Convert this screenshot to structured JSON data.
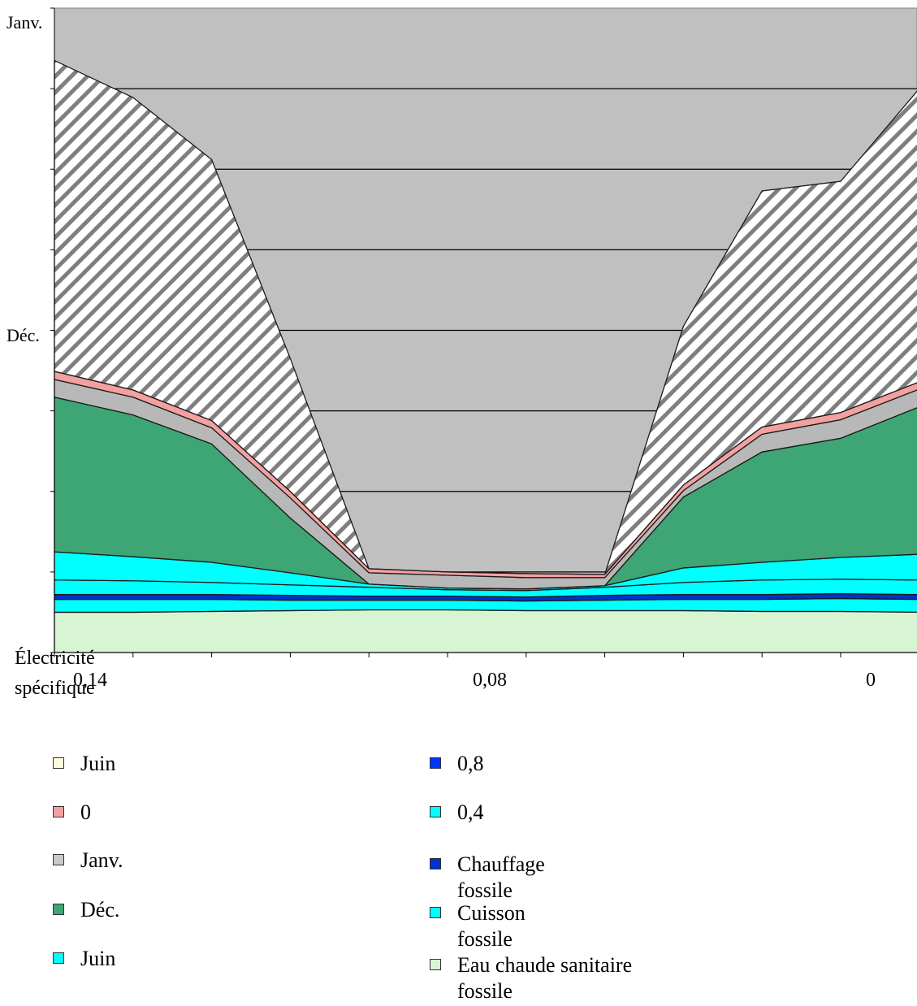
{
  "chart_data": {
    "type": "area",
    "stacked": true,
    "x_tick_labels": [
      "0,14",
      "0,08",
      "0"
    ],
    "y_tick_labels": [
      "Janv.",
      "Déc."
    ],
    "y_axis_title": "Électricité spécifique",
    "grid": "horizontal",
    "ylim": [
      0,
      8
    ],
    "x": [
      0,
      1,
      2,
      3,
      4,
      5,
      6,
      7,
      8,
      9,
      10,
      11
    ],
    "series": [
      {
        "name": "Eau chaude sanitaire fossile",
        "color": "#d8f5d3",
        "values": [
          0.5,
          0.5,
          0.51,
          0.52,
          0.53,
          0.53,
          0.52,
          0.52,
          0.52,
          0.51,
          0.51,
          0.5
        ]
      },
      {
        "name": "Cuisson fossile",
        "color": "#00ffff",
        "values": [
          0.16,
          0.16,
          0.15,
          0.13,
          0.12,
          0.12,
          0.12,
          0.13,
          0.14,
          0.15,
          0.16,
          0.16
        ]
      },
      {
        "name": "Chauffage fossile",
        "color": "#0033cc",
        "values": [
          0.06,
          0.06,
          0.06,
          0.06,
          0.05,
          0.05,
          0.05,
          0.06,
          0.06,
          0.06,
          0.06,
          0.06
        ]
      },
      {
        "name": "0,4",
        "color": "#00ffff",
        "values": [
          0.18,
          0.17,
          0.15,
          0.13,
          0.11,
          0.08,
          0.08,
          0.1,
          0.15,
          0.18,
          0.18,
          0.18
        ]
      },
      {
        "name": "Juin",
        "color": "#00ffff",
        "values": [
          0.35,
          0.3,
          0.25,
          0.15,
          0.04,
          0.02,
          0.02,
          0.02,
          0.18,
          0.22,
          0.27,
          0.32
        ]
      },
      {
        "name": "Déc.",
        "color": "#3ea574",
        "values": [
          1.92,
          1.76,
          1.47,
          0.68,
          0.0,
          0.0,
          0.0,
          0.0,
          0.88,
          1.37,
          1.48,
          1.83
        ]
      },
      {
        "name": "Janv.",
        "color": "#b8b8b8",
        "values": [
          0.22,
          0.22,
          0.2,
          0.25,
          0.14,
          0.16,
          0.14,
          0.1,
          0.08,
          0.22,
          0.23,
          0.22
        ]
      },
      {
        "name": "0",
        "color": "#f4a0a0",
        "values": [
          0.1,
          0.09,
          0.09,
          0.08,
          0.05,
          0.04,
          0.05,
          0.04,
          0.07,
          0.09,
          0.09,
          0.09
        ]
      },
      {
        "name": "Janv.",
        "color": "#c9c9c9",
        "values": [
          3.86,
          3.63,
          3.24,
          1.65,
          0.0,
          0.0,
          0.0,
          0.0,
          1.97,
          2.93,
          2.87,
          3.64
        ]
      },
      {
        "name": "Juin",
        "color": "#c8c8c8",
        "values": [
          0.65,
          1.11,
          1.88,
          4.35,
          6.96,
          7.04,
          7.05,
          6.93,
          3.85,
          1.91,
          1.18,
          0.3
        ]
      }
    ]
  },
  "legend": {
    "left": [
      {
        "label": "Juin",
        "color": "#fffbe0"
      },
      {
        "label": "0",
        "color": "#f4a0a0"
      },
      {
        "label": "Janv.",
        "color": "#c9c9c9"
      },
      {
        "label": "Déc.",
        "color": "#3ea574"
      },
      {
        "label": "Juin",
        "color": "#00ffff"
      }
    ],
    "right": [
      {
        "label": "0,8",
        "color": "#0033ff"
      },
      {
        "label": "0,4",
        "color": "#00ffff"
      },
      {
        "label": "Chauffage fossile",
        "color": "#0033cc"
      },
      {
        "label": "Cuisson fossile",
        "color": "#00ffff"
      },
      {
        "label": "Eau chaude sanitaire fossile",
        "color": "#d8f5d3"
      }
    ]
  }
}
